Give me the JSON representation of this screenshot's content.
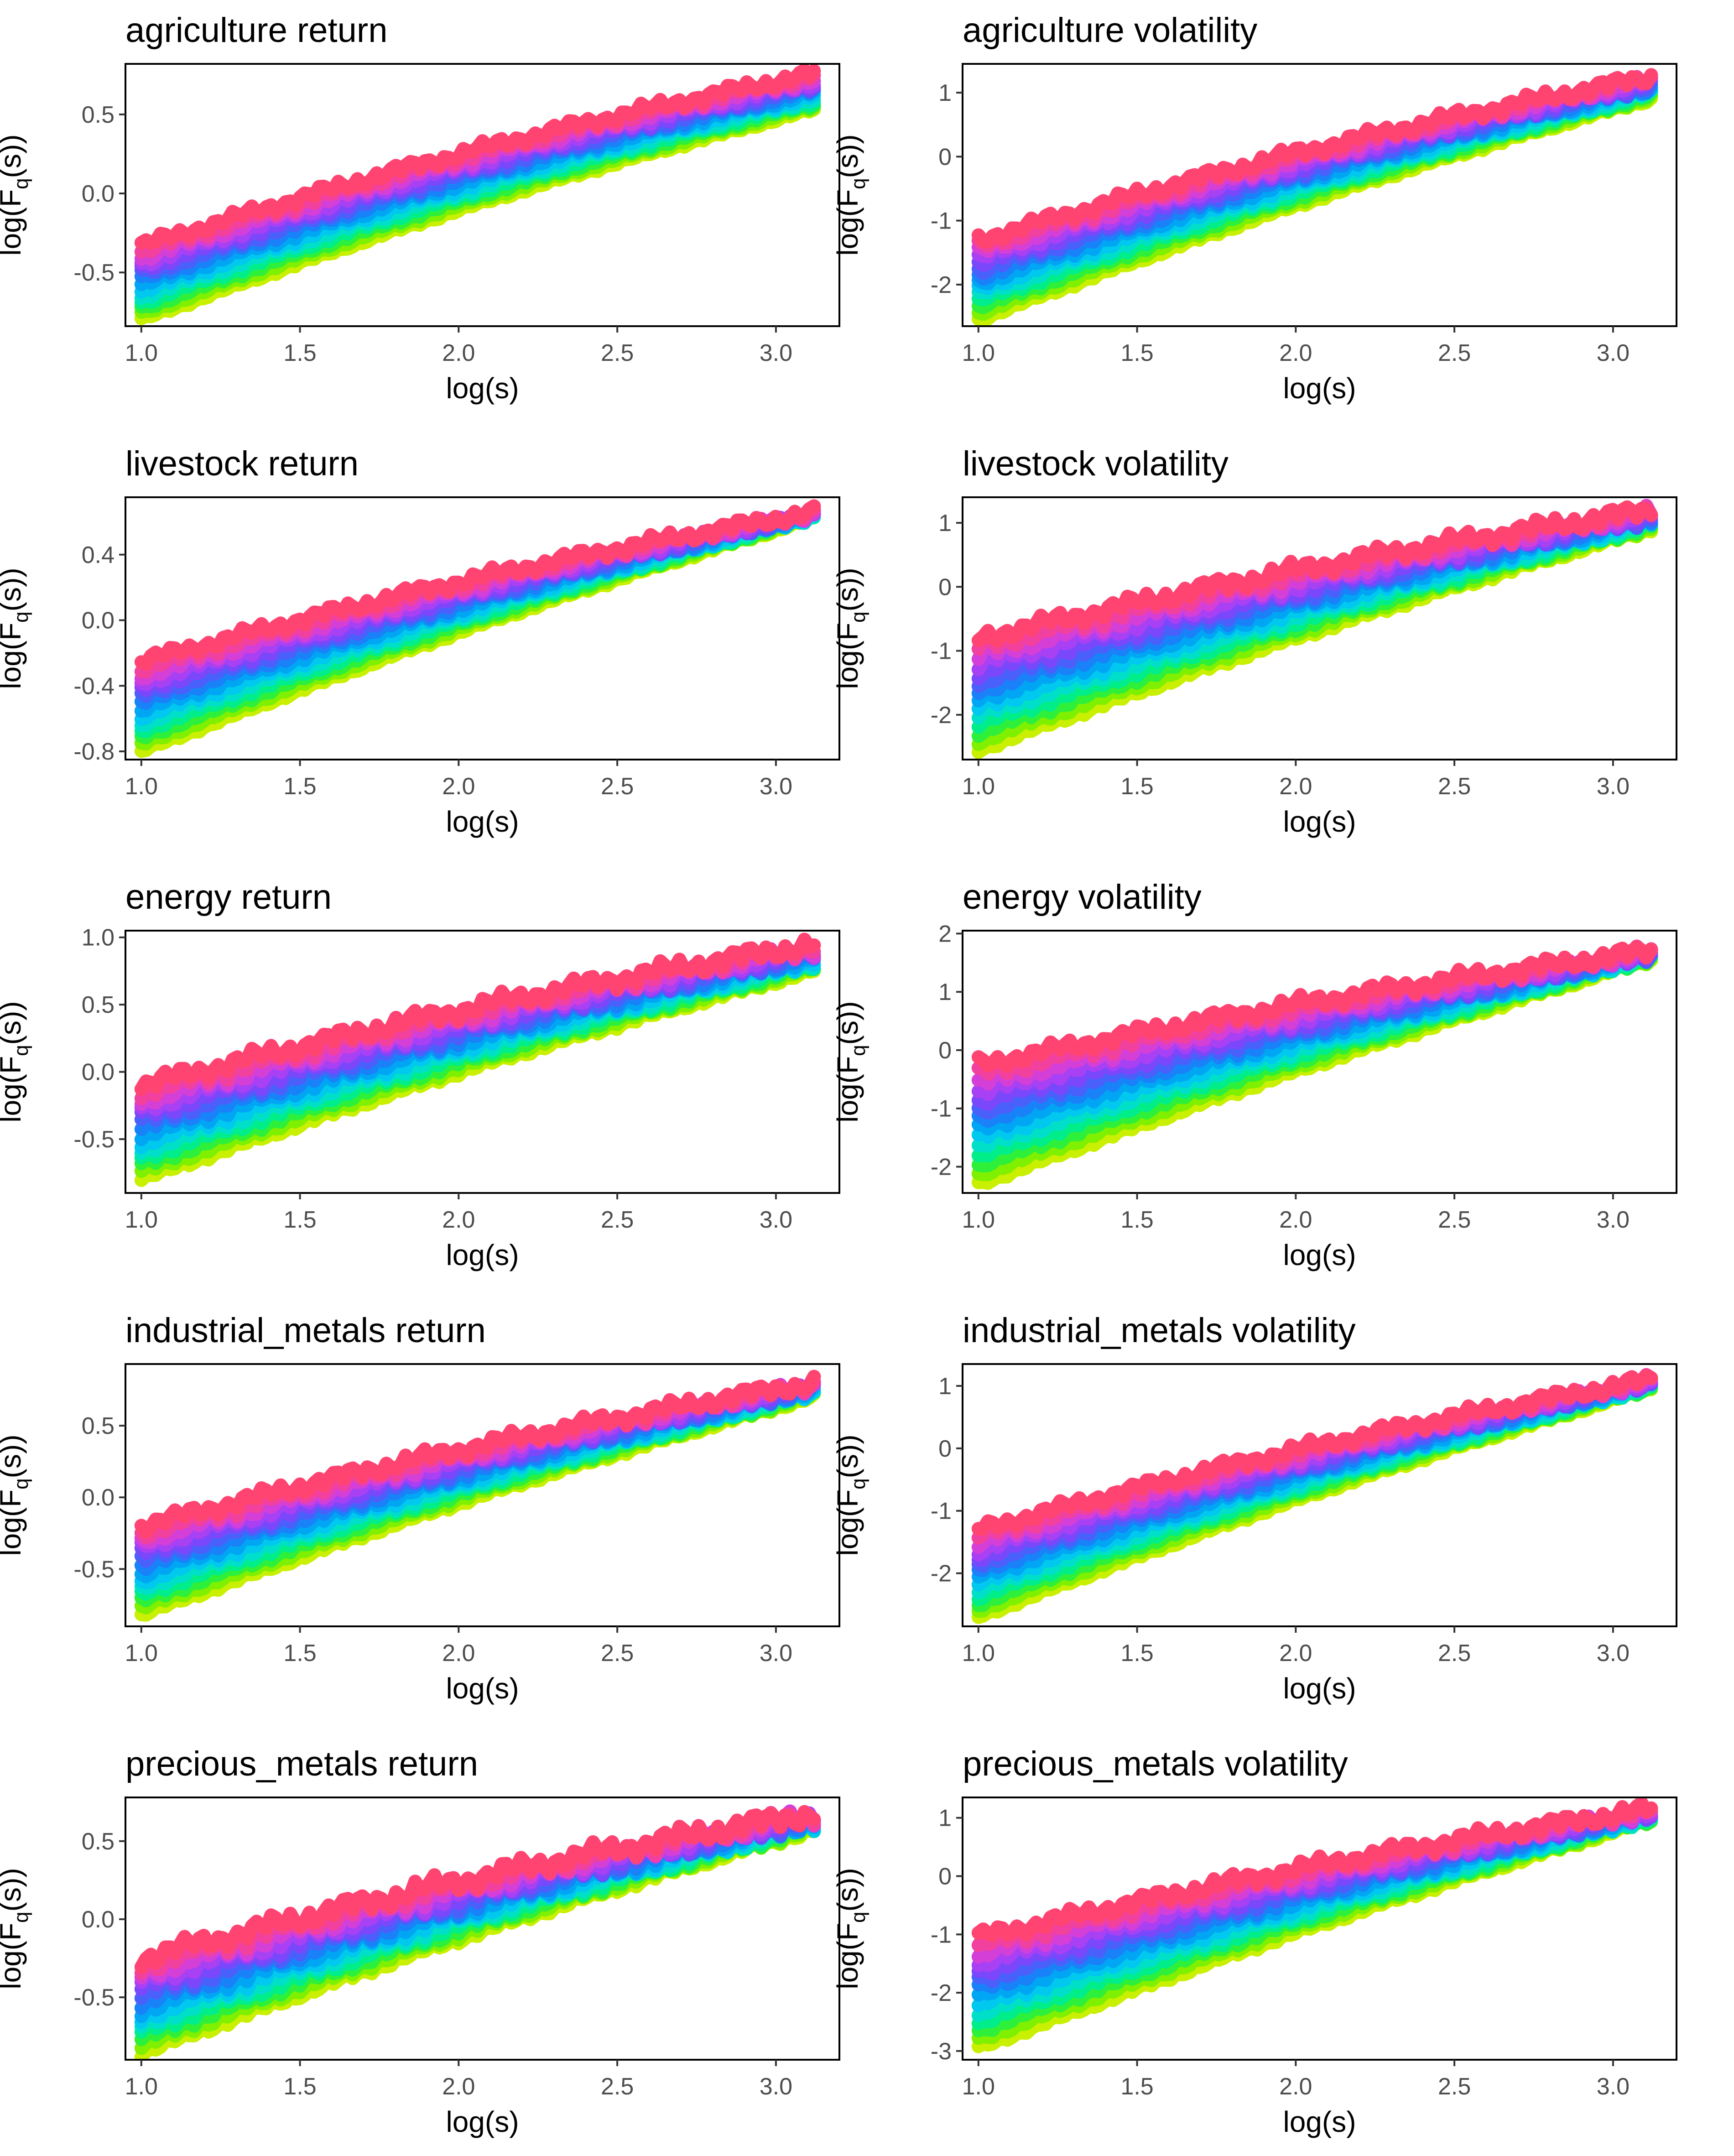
{
  "figure": {
    "xlabel": "log(s)",
    "ylabel_prefix": "log(F",
    "ylabel_sub": "q",
    "ylabel_suffix": "(s))",
    "x_ticks": [
      1.0,
      1.5,
      2.0,
      2.5,
      3.0
    ],
    "x_tick_labels": [
      "1.0",
      "1.5",
      "2.0",
      "2.5",
      "3.0"
    ],
    "xlim": [
      0.95,
      3.2
    ]
  },
  "chart_data": [
    {
      "type": "scatter",
      "title": "agriculture return",
      "xlim": [
        0.95,
        3.2
      ],
      "ylim": [
        -0.84,
        0.82
      ],
      "yticks": [
        -0.5,
        0.0,
        0.5
      ],
      "ytick_labels": [
        "-0.5",
        "0.0",
        "0.5"
      ],
      "x_range": [
        1.0,
        3.12
      ],
      "top_start": -0.33,
      "top_end": 0.76,
      "bot_start": -0.8,
      "bot_end": 0.53,
      "roughness": 0.03
    },
    {
      "type": "scatter",
      "title": "agriculture volatility",
      "xlim": [
        0.95,
        3.2
      ],
      "ylim": [
        -2.65,
        1.45
      ],
      "yticks": [
        -2,
        -1,
        0,
        1
      ],
      "ytick_labels": [
        "-2",
        "-1",
        "0",
        "1"
      ],
      "x_range": [
        1.0,
        3.12
      ],
      "top_start": -1.3,
      "top_end": 1.25,
      "bot_start": -2.55,
      "bot_end": 0.9,
      "roughness": 0.08
    },
    {
      "type": "scatter",
      "title": "livestock return",
      "xlim": [
        0.95,
        3.2
      ],
      "ylim": [
        -0.85,
        0.75
      ],
      "yticks": [
        -0.8,
        -0.4,
        0.0,
        0.4
      ],
      "ytick_labels": [
        "-0.8",
        "-0.4",
        "0.0",
        "0.4"
      ],
      "x_range": [
        1.0,
        3.12
      ],
      "top_start": -0.25,
      "top_end": 0.66,
      "bot_start": -0.8,
      "bot_end": 0.62,
      "roughness": 0.03
    },
    {
      "type": "scatter",
      "title": "livestock volatility",
      "xlim": [
        0.95,
        3.2
      ],
      "ylim": [
        -2.7,
        1.4
      ],
      "yticks": [
        -2,
        -1,
        0,
        1
      ],
      "ytick_labels": [
        "-2",
        "-1",
        "0",
        "1"
      ],
      "x_range": [
        1.0,
        3.12
      ],
      "top_start": -0.8,
      "top_end": 1.2,
      "bot_start": -2.55,
      "bot_end": 0.9,
      "roughness": 0.1
    },
    {
      "type": "scatter",
      "title": "energy return",
      "xlim": [
        0.95,
        3.2
      ],
      "ylim": [
        -0.9,
        1.05
      ],
      "yticks": [
        -0.5,
        0.0,
        0.5,
        1.0
      ],
      "ytick_labels": [
        "-0.5",
        "0.0",
        "0.5",
        "1.0"
      ],
      "x_range": [
        1.0,
        3.12
      ],
      "top_start": -0.1,
      "top_end": 0.95,
      "bot_start": -0.8,
      "bot_end": 0.75,
      "roughness": 0.05
    },
    {
      "type": "scatter",
      "title": "energy volatility",
      "xlim": [
        0.95,
        3.2
      ],
      "ylim": [
        -2.45,
        2.05
      ],
      "yticks": [
        -2,
        -1,
        0,
        1,
        2
      ],
      "ytick_labels": [
        "-2",
        "-1",
        "0",
        "1",
        "2"
      ],
      "x_range": [
        1.0,
        3.12
      ],
      "top_start": -0.25,
      "top_end": 1.7,
      "bot_start": -2.3,
      "bot_end": 1.55,
      "roughness": 0.1
    },
    {
      "type": "scatter",
      "title": "industrial_metals return",
      "xlim": [
        0.95,
        3.2
      ],
      "ylim": [
        -0.9,
        0.93
      ],
      "yticks": [
        -0.5,
        0.0,
        0.5
      ],
      "ytick_labels": [
        "-0.5",
        "0.0",
        "0.5"
      ],
      "x_range": [
        1.0,
        3.12
      ],
      "top_start": -0.2,
      "top_end": 0.8,
      "bot_start": -0.82,
      "bot_end": 0.7,
      "roughness": 0.04
    },
    {
      "type": "scatter",
      "title": "industrial_metals volatility",
      "xlim": [
        0.95,
        3.2
      ],
      "ylim": [
        -2.85,
        1.35
      ],
      "yticks": [
        -2,
        -1,
        0,
        1
      ],
      "ytick_labels": [
        "-2",
        "-1",
        "0",
        "1"
      ],
      "x_range": [
        1.0,
        3.12
      ],
      "top_start": -1.3,
      "top_end": 1.1,
      "bot_start": -2.7,
      "bot_end": 0.95,
      "roughness": 0.08
    },
    {
      "type": "scatter",
      "title": "precious_metals return",
      "xlim": [
        0.95,
        3.2
      ],
      "ylim": [
        -0.9,
        0.78
      ],
      "yticks": [
        -0.5,
        0.0,
        0.5
      ],
      "ytick_labels": [
        "-0.5",
        "0.0",
        "0.5"
      ],
      "x_range": [
        1.0,
        3.12
      ],
      "top_start": -0.25,
      "top_end": 0.68,
      "bot_start": -0.86,
      "bot_end": 0.57,
      "roughness": 0.05
    },
    {
      "type": "scatter",
      "title": "precious_metals volatility",
      "xlim": [
        0.95,
        3.2
      ],
      "ylim": [
        -3.15,
        1.35
      ],
      "yticks": [
        -3,
        -2,
        -1,
        0,
        1
      ],
      "ytick_labels": [
        "-3",
        "-2",
        "-1",
        "0",
        "1"
      ],
      "x_range": [
        1.0,
        3.12
      ],
      "top_start": -1.05,
      "top_end": 1.15,
      "bot_start": -2.95,
      "bot_end": 0.95,
      "roughness": 0.1
    }
  ]
}
